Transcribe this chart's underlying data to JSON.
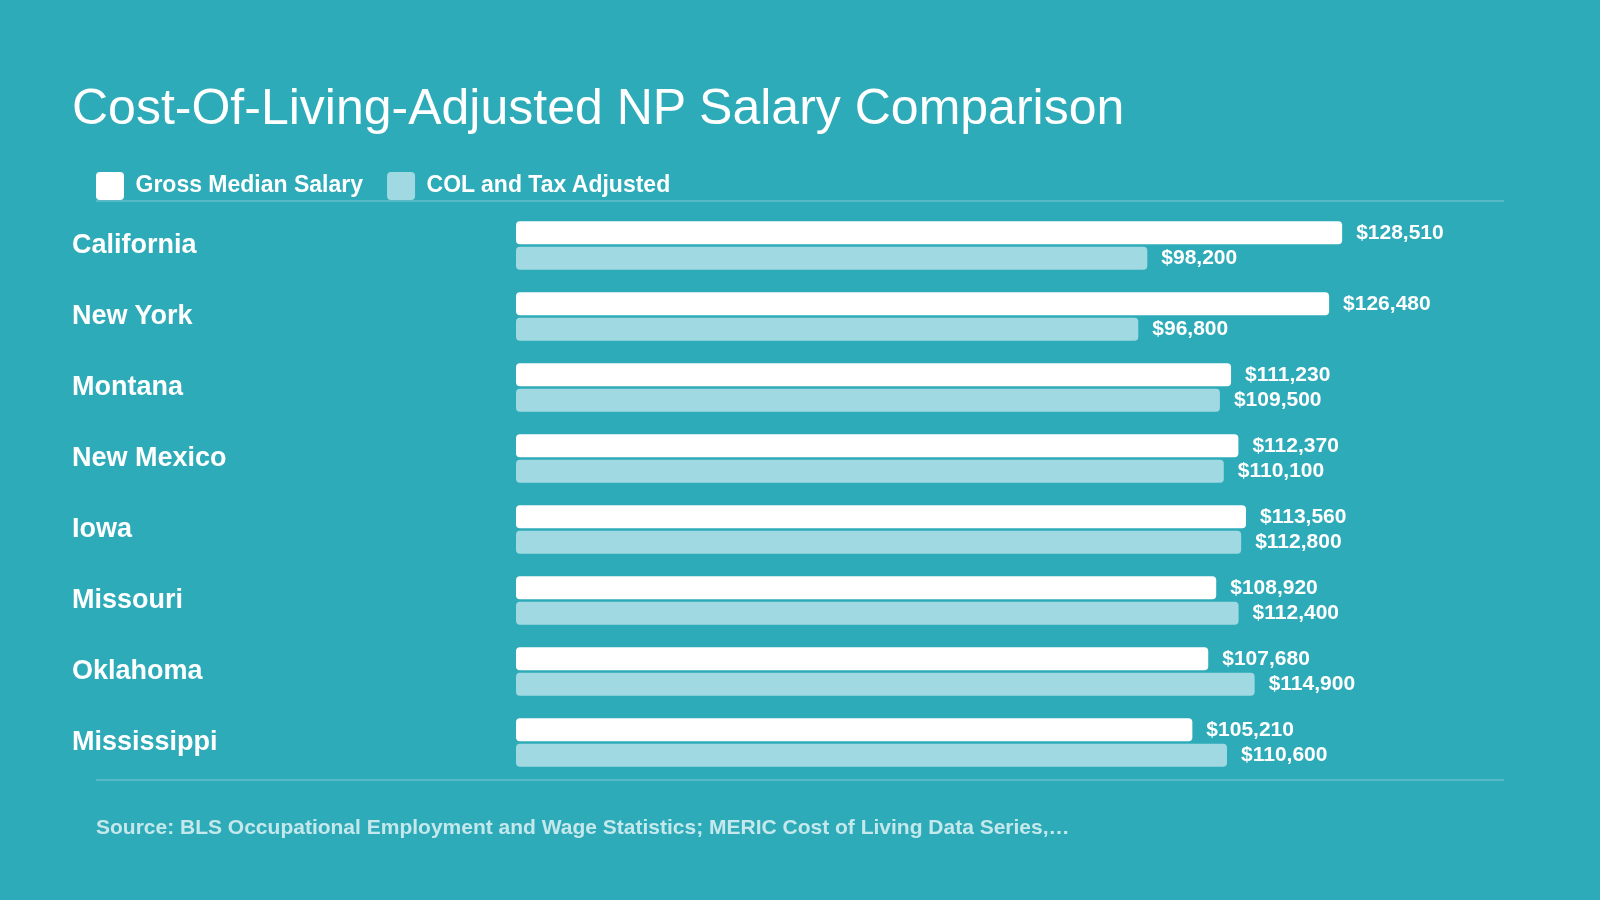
{
  "chart_data": {
    "type": "bar",
    "orientation": "horizontal",
    "title": "Cost-Of-Living-Adjusted NP Salary Comparison",
    "categories": [
      "California",
      "New York",
      "Montana",
      "New Mexico",
      "Iowa",
      "Missouri",
      "Oklahoma",
      "Mississippi"
    ],
    "series": [
      {
        "name": "Gross Median Salary",
        "color": "#ffffff",
        "values": [
          128510,
          126480,
          111230,
          112370,
          113560,
          108920,
          107680,
          105210
        ],
        "value_labels": [
          "$128,510",
          "$126,480",
          "$111,230",
          "$112,370",
          "$113,560",
          "$108,920",
          "$107,680",
          "$105,210"
        ]
      },
      {
        "name": "COL and Tax Adjusted",
        "color": "#a0d9e1",
        "values": [
          98200,
          96800,
          109500,
          110100,
          112800,
          112400,
          114900,
          110600
        ],
        "value_labels": [
          "$98,200",
          "$96,800",
          "$109,500",
          "$110,100",
          "$112,800",
          "$112,400",
          "$114,900",
          "$110,600"
        ]
      }
    ],
    "tick_labels": "y",
    "legend": "top left",
    "annotations": [
      "Source: BLS Occupational Employment and Wage Statistics; MERIC Cost of Living Data Series,…"
    ]
  }
}
